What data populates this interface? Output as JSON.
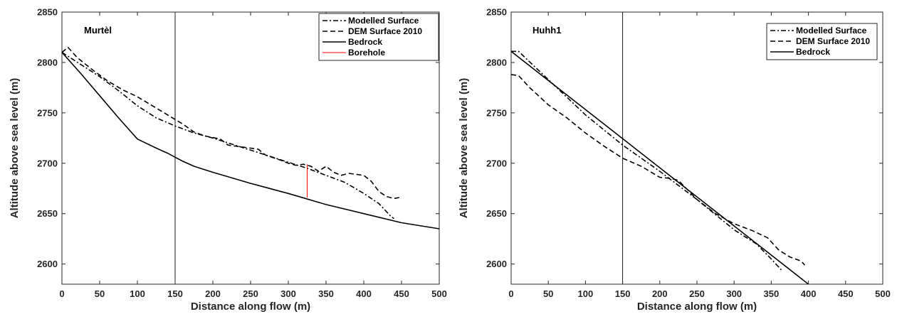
{
  "chart_data": [
    {
      "type": "line",
      "title": "Murtèl",
      "xlabel": "Distance along flow (m)",
      "ylabel": "Altitude above sea level (m)",
      "xlim": [
        0,
        500
      ],
      "ylim": [
        2580,
        2850
      ],
      "xticks": [
        0,
        50,
        100,
        150,
        200,
        250,
        300,
        350,
        400,
        450,
        500
      ],
      "yticks": [
        2600,
        2650,
        2700,
        2750,
        2800,
        2850
      ],
      "grid": false,
      "legend_position": "top-right",
      "vline_x": 150,
      "series": [
        {
          "name": "Modelled Surface",
          "style": "dashdot",
          "color": "#000000",
          "x": [
            0,
            25,
            50,
            75,
            100,
            125,
            150,
            175,
            200,
            225,
            250,
            275,
            300,
            325,
            350,
            375,
            400,
            420,
            435,
            440
          ],
          "y": [
            2810,
            2798,
            2786,
            2772,
            2757,
            2745,
            2737,
            2730,
            2725,
            2719,
            2713,
            2707,
            2701,
            2695,
            2688,
            2681,
            2670,
            2660,
            2648,
            2645
          ]
        },
        {
          "name": "DEM Surface 2010",
          "style": "dashed",
          "color": "#000000",
          "x": [
            0,
            8,
            20,
            40,
            60,
            80,
            100,
            120,
            140,
            160,
            175,
            190,
            210,
            220,
            240,
            260,
            270,
            290,
            300,
            310,
            320,
            330,
            340,
            350,
            360,
            370,
            380,
            400,
            410,
            420,
            430,
            440,
            447
          ],
          "y": [
            2810,
            2815,
            2805,
            2793,
            2782,
            2773,
            2766,
            2757,
            2748,
            2739,
            2731,
            2727,
            2724,
            2718,
            2716,
            2714,
            2708,
            2703,
            2700,
            2698,
            2699,
            2697,
            2692,
            2697,
            2691,
            2688,
            2690,
            2688,
            2682,
            2672,
            2667,
            2665,
            2666
          ]
        },
        {
          "name": "Bedrock",
          "style": "solid",
          "color": "#000000",
          "x": [
            0,
            25,
            50,
            75,
            100,
            125,
            140,
            150,
            160,
            175,
            200,
            250,
            300,
            350,
            400,
            450,
            500
          ],
          "y": [
            2810,
            2789,
            2767,
            2745,
            2724,
            2715,
            2710,
            2706,
            2702,
            2697,
            2691,
            2680,
            2670,
            2659,
            2650,
            2641,
            2635
          ]
        },
        {
          "name": "Borehole",
          "style": "solid",
          "color": "#ff0000",
          "x": [
            325,
            325
          ],
          "y": [
            2666,
            2699
          ]
        }
      ]
    },
    {
      "type": "line",
      "title": "Huhh1",
      "xlabel": "Distance along flow (m)",
      "ylabel": "Altitude above sea level (m)",
      "xlim": [
        0,
        500
      ],
      "ylim": [
        2580,
        2850
      ],
      "xticks": [
        0,
        50,
        100,
        150,
        200,
        250,
        300,
        350,
        400,
        450,
        500
      ],
      "yticks": [
        2600,
        2650,
        2700,
        2750,
        2800,
        2850
      ],
      "grid": false,
      "legend_position": "top-right",
      "vline_x": 150,
      "series": [
        {
          "name": "Modelled Surface",
          "style": "dashdot",
          "color": "#000000",
          "x": [
            0,
            10,
            50,
            100,
            150,
            200,
            250,
            300,
            330,
            350,
            365
          ],
          "y": [
            2811,
            2811,
            2783,
            2748,
            2718,
            2692,
            2664,
            2634,
            2620,
            2605,
            2593
          ]
        },
        {
          "name": "DEM Surface 2010",
          "style": "dashed",
          "color": "#000000",
          "x": [
            0,
            10,
            25,
            50,
            75,
            100,
            125,
            150,
            175,
            200,
            215,
            225,
            250,
            275,
            300,
            325,
            345,
            360,
            375,
            390,
            395
          ],
          "y": [
            2788,
            2787,
            2775,
            2758,
            2745,
            2730,
            2717,
            2705,
            2697,
            2686,
            2685,
            2683,
            2664,
            2650,
            2640,
            2633,
            2626,
            2614,
            2607,
            2603,
            2599
          ]
        },
        {
          "name": "Bedrock",
          "style": "solid",
          "color": "#000000",
          "x": [
            0,
            400
          ],
          "y": [
            2811,
            2580
          ]
        }
      ]
    }
  ]
}
